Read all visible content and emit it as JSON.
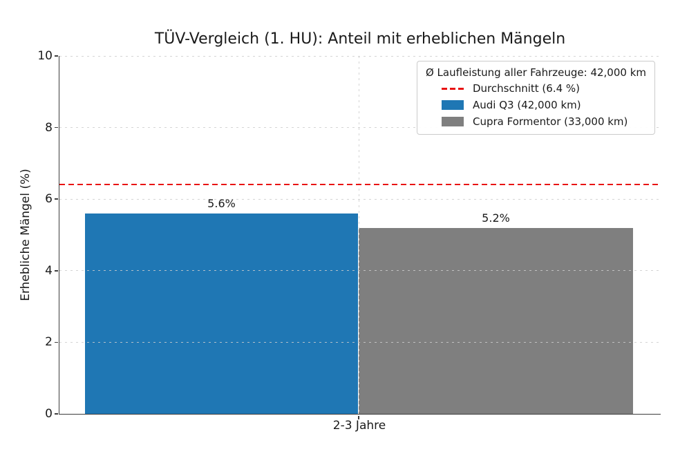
{
  "chart_data": {
    "type": "bar",
    "title": "TÜV-Vergleich (1. HU): Anteil mit erheblichen Mängeln",
    "ylabel": "Erhebliche Mängel (%)",
    "xlabel": "",
    "categories": [
      "2-3 Jahre"
    ],
    "series": [
      {
        "name": "Audi Q3 (42,000 km)",
        "values": [
          5.6
        ],
        "color": "#1f77b4"
      },
      {
        "name": "Cupra Formentor (33,000 km)",
        "values": [
          5.2
        ],
        "color": "#7f7f7f"
      }
    ],
    "bar_labels": [
      "5.6%",
      "5.2%"
    ],
    "reference_line": {
      "value": 6.4,
      "label": "Durchschnitt (6.4 %)",
      "color": "#e81212",
      "style": "dashed"
    },
    "ylim": [
      0,
      10
    ],
    "yticks": [
      0,
      2,
      4,
      6,
      8,
      10
    ],
    "grid": true,
    "legend": {
      "position": "upper right",
      "title": "Ø Laufleistung aller Fahrzeuge: 42,000 km",
      "items": [
        {
          "label": "Durchschnitt (6.4 %)",
          "handle": "red-dashed-line"
        },
        {
          "label": "Audi Q3 (42,000 km)",
          "handle": "blue-swatch"
        },
        {
          "label": "Cupra Formentor (33,000 km)",
          "handle": "gray-swatch"
        }
      ]
    }
  }
}
